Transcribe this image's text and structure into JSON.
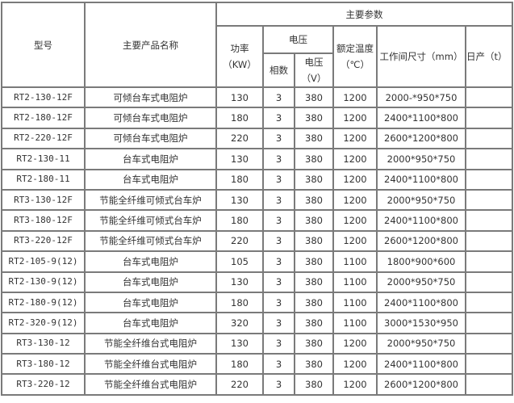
{
  "headers": {
    "model": "型号",
    "product_name": "主要产品名称",
    "main_params": "主要参数",
    "power": "功率",
    "power_unit": "（KW）",
    "voltage_group": "电压",
    "phases": "相数",
    "voltage": "电压",
    "voltage_unit": "（V）",
    "rated_temp": "额定温度",
    "rated_temp_unit": "（℃）",
    "work_size": "工作间尺寸（mm）",
    "daily_output": "日产（t）"
  },
  "rows": [
    {
      "model": "RT2-130-12F",
      "name": "可倾台车式电阻炉",
      "power": "130",
      "phases": "3",
      "voltage": "380",
      "temp": "1200",
      "size": "2000-*950*750",
      "output": ""
    },
    {
      "model": "RT2-180-12F",
      "name": "可倾台车式电阻炉",
      "power": "180",
      "phases": "3",
      "voltage": "380",
      "temp": "1200",
      "size": "2400*1100*800",
      "output": ""
    },
    {
      "model": "RT2-220-12F",
      "name": "可倾台车式电阻炉",
      "power": "220",
      "phases": "3",
      "voltage": "380",
      "temp": "1200",
      "size": "2600*1200*800",
      "output": ""
    },
    {
      "model": "RT2-130-11",
      "name": "台车式电阻炉",
      "power": "130",
      "phases": "3",
      "voltage": "380",
      "temp": "1200",
      "size": "2000*950*750",
      "output": ""
    },
    {
      "model": "RT2-180-11",
      "name": "台车式电阻炉",
      "power": "180",
      "phases": "3",
      "voltage": "380",
      "temp": "1200",
      "size": "2400*1100*800",
      "output": ""
    },
    {
      "model": "RT3-130-12F",
      "name": "节能全纤维可倾式台车炉",
      "power": "130",
      "phases": "3",
      "voltage": "380",
      "temp": "1200",
      "size": "2000*950*750",
      "output": ""
    },
    {
      "model": "RT3-180-12F",
      "name": "节能全纤维可倾式台车炉",
      "power": "180",
      "phases": "3",
      "voltage": "380",
      "temp": "1200",
      "size": "2400*1100*800",
      "output": ""
    },
    {
      "model": "RT3-220-12F",
      "name": "节能全纤维可倾式台车炉",
      "power": "220",
      "phases": "3",
      "voltage": "380",
      "temp": "1200",
      "size": "2600*1200*800",
      "output": ""
    },
    {
      "model": "RT2-105-9(12)",
      "name": "台车式电阻炉",
      "power": "105",
      "phases": "3",
      "voltage": "380",
      "temp": "1100",
      "size": "1800*900*600",
      "output": ""
    },
    {
      "model": "RT2-130-9(12)",
      "name": "台车式电阻炉",
      "power": "130",
      "phases": "3",
      "voltage": "380",
      "temp": "1100",
      "size": "2000*950*750",
      "output": ""
    },
    {
      "model": "RT2-180-9(12)",
      "name": "台车式电阻炉",
      "power": "180",
      "phases": "3",
      "voltage": "380",
      "temp": "1100",
      "size": "2400*1100*800",
      "output": ""
    },
    {
      "model": "RT2-320-9(12)",
      "name": "台车式电阻炉",
      "power": "320",
      "phases": "3",
      "voltage": "380",
      "temp": "1100",
      "size": "3000*1530*950",
      "output": ""
    },
    {
      "model": "RT3-130-12",
      "name": "节能全纤维台式电阻炉",
      "power": "130",
      "phases": "3",
      "voltage": "380",
      "temp": "1200",
      "size": "2000*950*750",
      "output": ""
    },
    {
      "model": "RT3-180-12",
      "name": "节能全纤维台式电阻炉",
      "power": "180",
      "phases": "3",
      "voltage": "380",
      "temp": "1200",
      "size": "2400*1100*800",
      "output": ""
    },
    {
      "model": "RT3-220-12",
      "name": "节能全纤维台式电阻炉",
      "power": "220",
      "phases": "3",
      "voltage": "380",
      "temp": "1200",
      "size": "2600*1200*800",
      "output": ""
    }
  ]
}
